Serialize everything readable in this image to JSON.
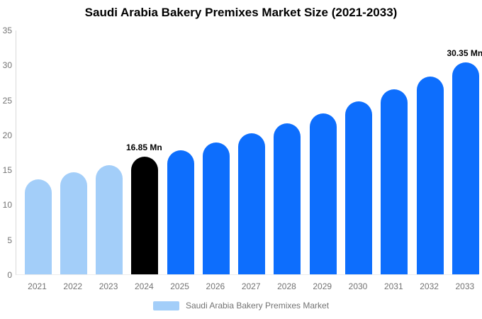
{
  "chart_data": {
    "type": "bar",
    "title": "Saudi Arabia Bakery Premixes Market Size (2021-2033)",
    "categories": [
      "2021",
      "2022",
      "2023",
      "2024",
      "2025",
      "2026",
      "2027",
      "2028",
      "2029",
      "2030",
      "2031",
      "2032",
      "2033"
    ],
    "values": [
      13.6,
      14.6,
      15.6,
      16.85,
      17.8,
      18.9,
      20.2,
      21.6,
      23.0,
      24.8,
      26.5,
      28.3,
      30.35
    ],
    "groups": [
      "past",
      "past",
      "past",
      "current",
      "forecast",
      "forecast",
      "forecast",
      "forecast",
      "forecast",
      "forecast",
      "forecast",
      "forecast",
      "forecast"
    ],
    "point_labels": [
      "",
      "",
      "",
      "16.85 Mn",
      "",
      "",
      "",
      "",
      "",
      "",
      "",
      "",
      "30.35 Mn"
    ],
    "xlabel": "",
    "ylabel": "",
    "ylim": [
      0,
      35
    ],
    "yticks": [
      0,
      5,
      10,
      15,
      20,
      25,
      30,
      35
    ],
    "grid": false,
    "legend_position": "bottom",
    "legend": {
      "label": "Saudi Arabia Bakery Premixes Market",
      "swatch_color": "#a3cef9"
    },
    "colors": {
      "past": "#a3cef9",
      "current": "#000000",
      "forecast": "#0d6efd"
    },
    "axis_text_color": "#737373",
    "title_color": "#000000"
  }
}
